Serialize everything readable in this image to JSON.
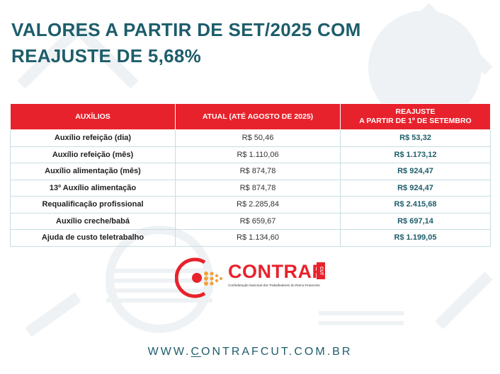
{
  "title": "VALORES A PARTIR DE SET/2025 COM REAJUSTE DE 5,68%",
  "table": {
    "headers": [
      "AUXÍLIOS",
      "ATUAL (ATÉ AGOSTO DE 2025)",
      "REAJUSTE",
      "A PARTIR DE 1º DE SETEMBRO"
    ],
    "rows": [
      {
        "aux": "Auxílio refeição (dia)",
        "current": "R$ 50,46",
        "adjusted": "R$ 53,32"
      },
      {
        "aux": "Auxílio refeição (mês)",
        "current": "R$ 1.110,06",
        "adjusted": "R$ 1.173,12"
      },
      {
        "aux": "Auxílio alimentação (mês)",
        "current": "R$ 874,78",
        "adjusted": "R$ 924,47"
      },
      {
        "aux": "13º Auxílio alimentação",
        "current": "R$ 874,78",
        "adjusted": "R$ 924,47"
      },
      {
        "aux": "Requalificação profissional",
        "current": "R$ 2.285,84",
        "adjusted": "R$ 2.415,68"
      },
      {
        "aux": "Auxílio creche/babá",
        "current": "R$ 659,67",
        "adjusted": "R$ 697,14"
      },
      {
        "aux": "Ajuda de custo teletrabalho",
        "current": "R$ 1.134,60",
        "adjusted": "R$ 1.199,05"
      }
    ]
  },
  "logo": {
    "name": "CONTRAF",
    "badge": "CUT",
    "subtitle": "Confederação Nacional dos Trabalhadores do Ramo Financeiro"
  },
  "website": {
    "prefix": "WWW.",
    "underlined": "C",
    "rest": "ONTRAFCUT.COM.BR"
  },
  "colors": {
    "primary_teal": "#1d5d6b",
    "accent_red": "#e8222c",
    "table_border": "#c7dde2"
  }
}
